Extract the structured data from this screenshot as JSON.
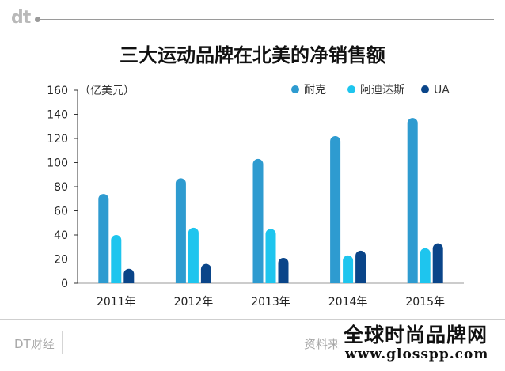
{
  "header": {
    "logo": "dt"
  },
  "chart_data": {
    "type": "bar",
    "title": "三大运动品牌在北美的净销售额",
    "unit_label": "（亿美元）",
    "categories": [
      "2011年",
      "2012年",
      "2013年",
      "2014年",
      "2015年"
    ],
    "series": [
      {
        "name": "耐克",
        "color": "#2e9bd0",
        "values": [
          74,
          87,
          103,
          122,
          137
        ]
      },
      {
        "name": "阿迪达斯",
        "color": "#1ec5ee",
        "values": [
          40,
          46,
          45,
          23,
          29
        ]
      },
      {
        "name": "UA",
        "color": "#0a4589",
        "values": [
          12,
          16,
          21,
          27,
          33
        ]
      }
    ],
    "yticks": [
      0,
      20,
      40,
      60,
      80,
      100,
      120,
      140,
      160
    ],
    "ylim": [
      0,
      160
    ],
    "grid": false,
    "legend_position": "top-right"
  },
  "footer": {
    "left": "DT财经",
    "right": "资料来"
  },
  "watermark": {
    "title": "全球时尚品牌网",
    "url": "www.glosspp.com"
  }
}
